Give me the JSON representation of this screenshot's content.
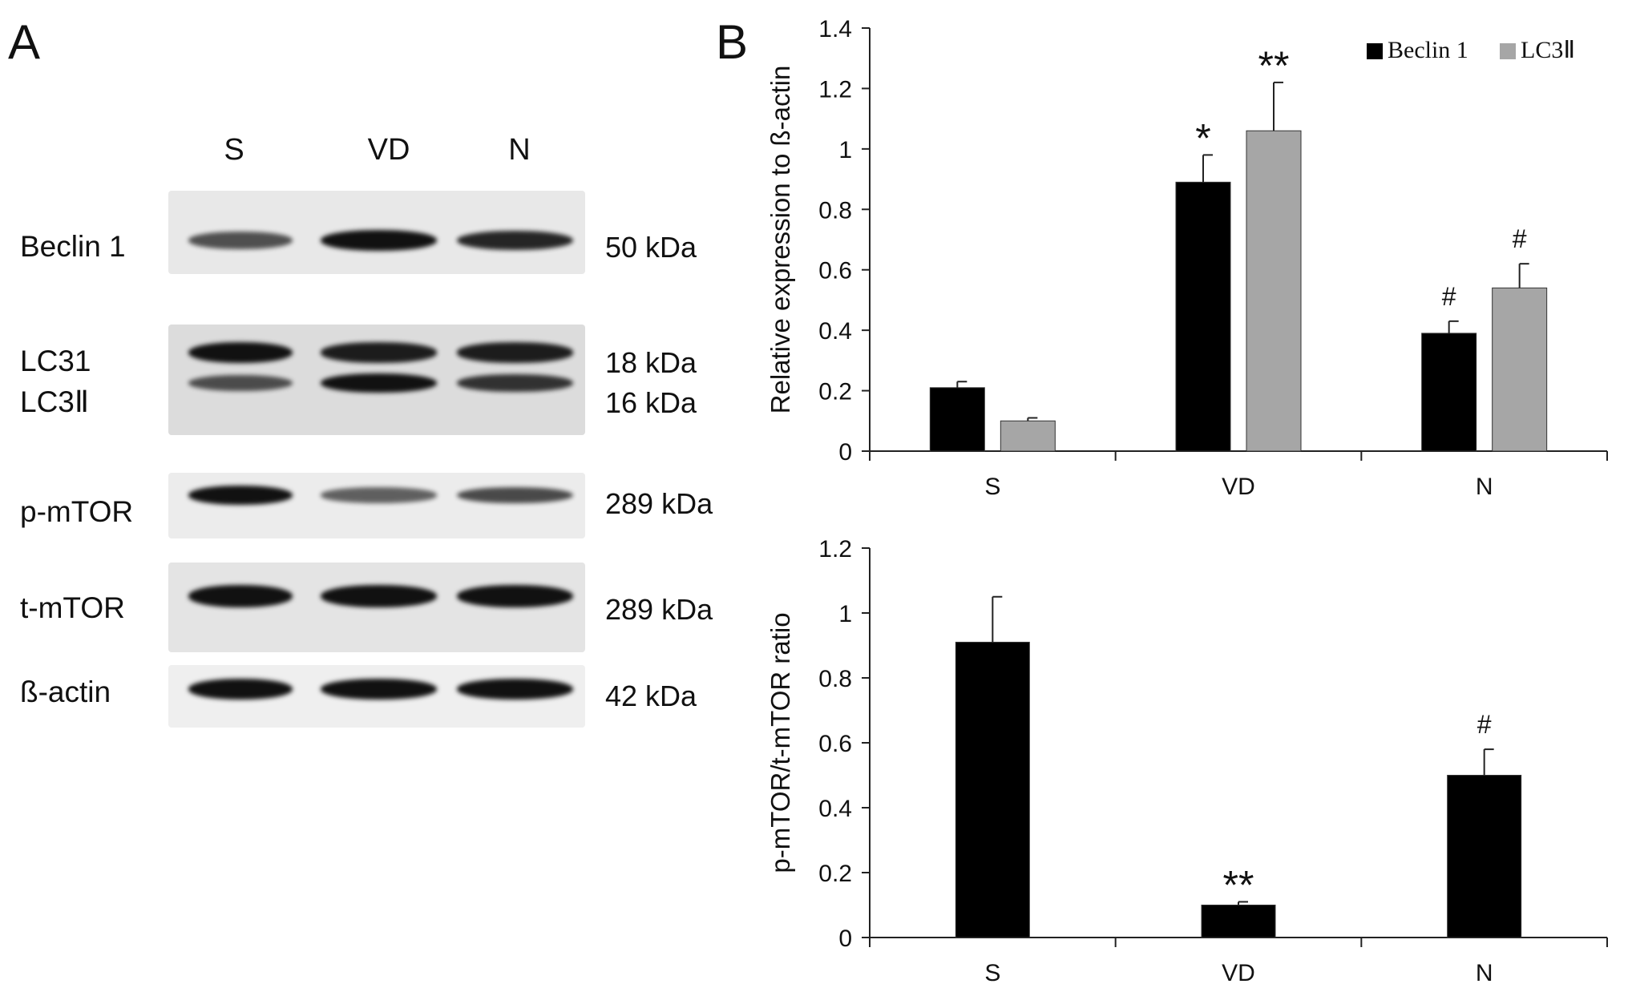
{
  "panel_a": {
    "letter": "A",
    "lanes": [
      "S",
      "VD",
      "N"
    ],
    "rows": [
      {
        "label": "Beclin 1",
        "kda": "50 kDa",
        "intensity": [
          0.55,
          1.0,
          0.85
        ]
      },
      {
        "label": "LC31",
        "kda": "18 kDa",
        "intensity": [
          1.0,
          0.9,
          0.9
        ]
      },
      {
        "label": "LC3Ⅱ",
        "kda": "16 kDa",
        "intensity": [
          0.55,
          1.0,
          0.75
        ]
      },
      {
        "label": "p-mTOR",
        "kda": "289 kDa",
        "intensity": [
          1.0,
          0.45,
          0.6
        ]
      },
      {
        "label": "t-mTOR",
        "kda": "289 kDa",
        "intensity": [
          1.0,
          1.0,
          1.0
        ]
      },
      {
        "label": "ß-actin",
        "kda": "42 kDa",
        "intensity": [
          1.0,
          1.0,
          1.0
        ]
      }
    ]
  },
  "panel_b": {
    "letter": "B"
  },
  "chart_data": [
    {
      "type": "bar",
      "categories": [
        "S",
        "VD",
        "N"
      ],
      "ylabel": "Relative expression to ß-actin",
      "ylim": [
        0,
        1.4
      ],
      "yticks": [
        "0",
        "0.2",
        "0.4",
        "0.6",
        "0.8",
        "1",
        "1.2",
        "1.4"
      ],
      "legend_position": "top-right",
      "series": [
        {
          "name": "Beclin 1",
          "color": "#000000",
          "values": [
            0.21,
            0.89,
            0.39
          ],
          "errors": [
            0.02,
            0.09,
            0.04
          ],
          "annotations": [
            "",
            "*",
            "#"
          ]
        },
        {
          "name": "LC3Ⅱ",
          "color": "#a6a6a6",
          "values": [
            0.1,
            1.06,
            0.54
          ],
          "errors": [
            0.01,
            0.16,
            0.08
          ],
          "annotations": [
            "",
            "**",
            "#"
          ]
        }
      ]
    },
    {
      "type": "bar",
      "categories": [
        "S",
        "VD",
        "N"
      ],
      "ylabel": "p-mTOR/t-mTOR ratio",
      "ylim": [
        0,
        1.2
      ],
      "yticks": [
        "0",
        "0.2",
        "0.4",
        "0.6",
        "0.8",
        "1",
        "1.2"
      ],
      "series": [
        {
          "color": "#000000",
          "values": [
            0.91,
            0.1,
            0.5
          ],
          "errors": [
            0.14,
            0.01,
            0.08
          ],
          "annotations": [
            "",
            "**",
            "#"
          ]
        }
      ]
    }
  ]
}
